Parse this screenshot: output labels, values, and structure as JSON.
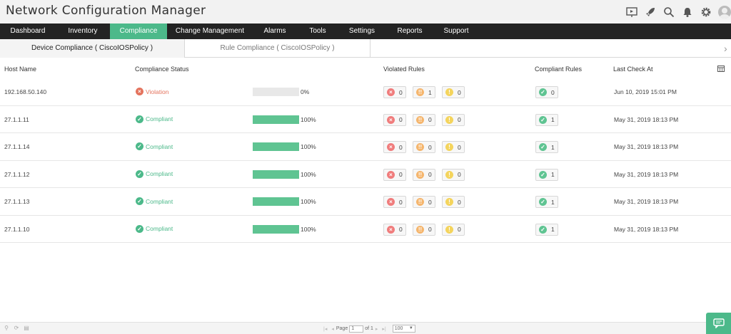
{
  "app": {
    "title": "Network Configuration Manager"
  },
  "header_icons": [
    "presentation-icon",
    "rocket-icon",
    "search-icon",
    "bell-icon",
    "gear-icon",
    "avatar"
  ],
  "nav": {
    "items": [
      {
        "label": "Dashboard",
        "active": false
      },
      {
        "label": "Inventory",
        "active": false
      },
      {
        "label": "Compliance",
        "active": true
      },
      {
        "label": "Change Management",
        "active": false
      },
      {
        "label": "Alarms",
        "active": false
      },
      {
        "label": "Tools",
        "active": false
      },
      {
        "label": "Settings",
        "active": false
      },
      {
        "label": "Reports",
        "active": false
      },
      {
        "label": "Support",
        "active": false
      }
    ]
  },
  "subtabs": {
    "device": "Device Compliance ( CiscoIOSPolicy )",
    "rule": "Rule Compliance ( CiscoIOSPolicy )"
  },
  "table": {
    "headers": {
      "host": "Host Name",
      "status": "Compliance Status",
      "violated": "Violated Rules",
      "compliant": "Compliant Rules",
      "lastcheck": "Last Check At"
    },
    "rows": [
      {
        "host": "192.168.50.140",
        "status": "Violation",
        "pct": "0%",
        "pct_value": 0,
        "critical": "0",
        "major": "1",
        "minor": "0",
        "compliant": "0",
        "lastcheck": "Jun 10, 2019 15:01 PM"
      },
      {
        "host": "27.1.1.11",
        "status": "Compliant",
        "pct": "100%",
        "pct_value": 100,
        "critical": "0",
        "major": "0",
        "minor": "0",
        "compliant": "1",
        "lastcheck": "May 31, 2019 18:13 PM"
      },
      {
        "host": "27.1.1.14",
        "status": "Compliant",
        "pct": "100%",
        "pct_value": 100,
        "critical": "0",
        "major": "0",
        "minor": "0",
        "compliant": "1",
        "lastcheck": "May 31, 2019 18:13 PM"
      },
      {
        "host": "27.1.1.12",
        "status": "Compliant",
        "pct": "100%",
        "pct_value": 100,
        "critical": "0",
        "major": "0",
        "minor": "0",
        "compliant": "1",
        "lastcheck": "May 31, 2019 18:13 PM"
      },
      {
        "host": "27.1.1.13",
        "status": "Compliant",
        "pct": "100%",
        "pct_value": 100,
        "critical": "0",
        "major": "0",
        "minor": "0",
        "compliant": "1",
        "lastcheck": "May 31, 2019 18:13 PM"
      },
      {
        "host": "27.1.1.10",
        "status": "Compliant",
        "pct": "100%",
        "pct_value": 100,
        "critical": "0",
        "major": "0",
        "minor": "0",
        "compliant": "1",
        "lastcheck": "May 31, 2019 18:13 PM"
      }
    ]
  },
  "pager": {
    "page_label": "Page",
    "page_value": "1",
    "of_label": "of 1",
    "page_size": "100"
  },
  "colors": {
    "accent": "#4cb98a",
    "violation": "#e4735d",
    "critical": "#f07c7c",
    "major": "#f5b56c",
    "minor": "#f4d45c",
    "navbar": "#232323"
  }
}
